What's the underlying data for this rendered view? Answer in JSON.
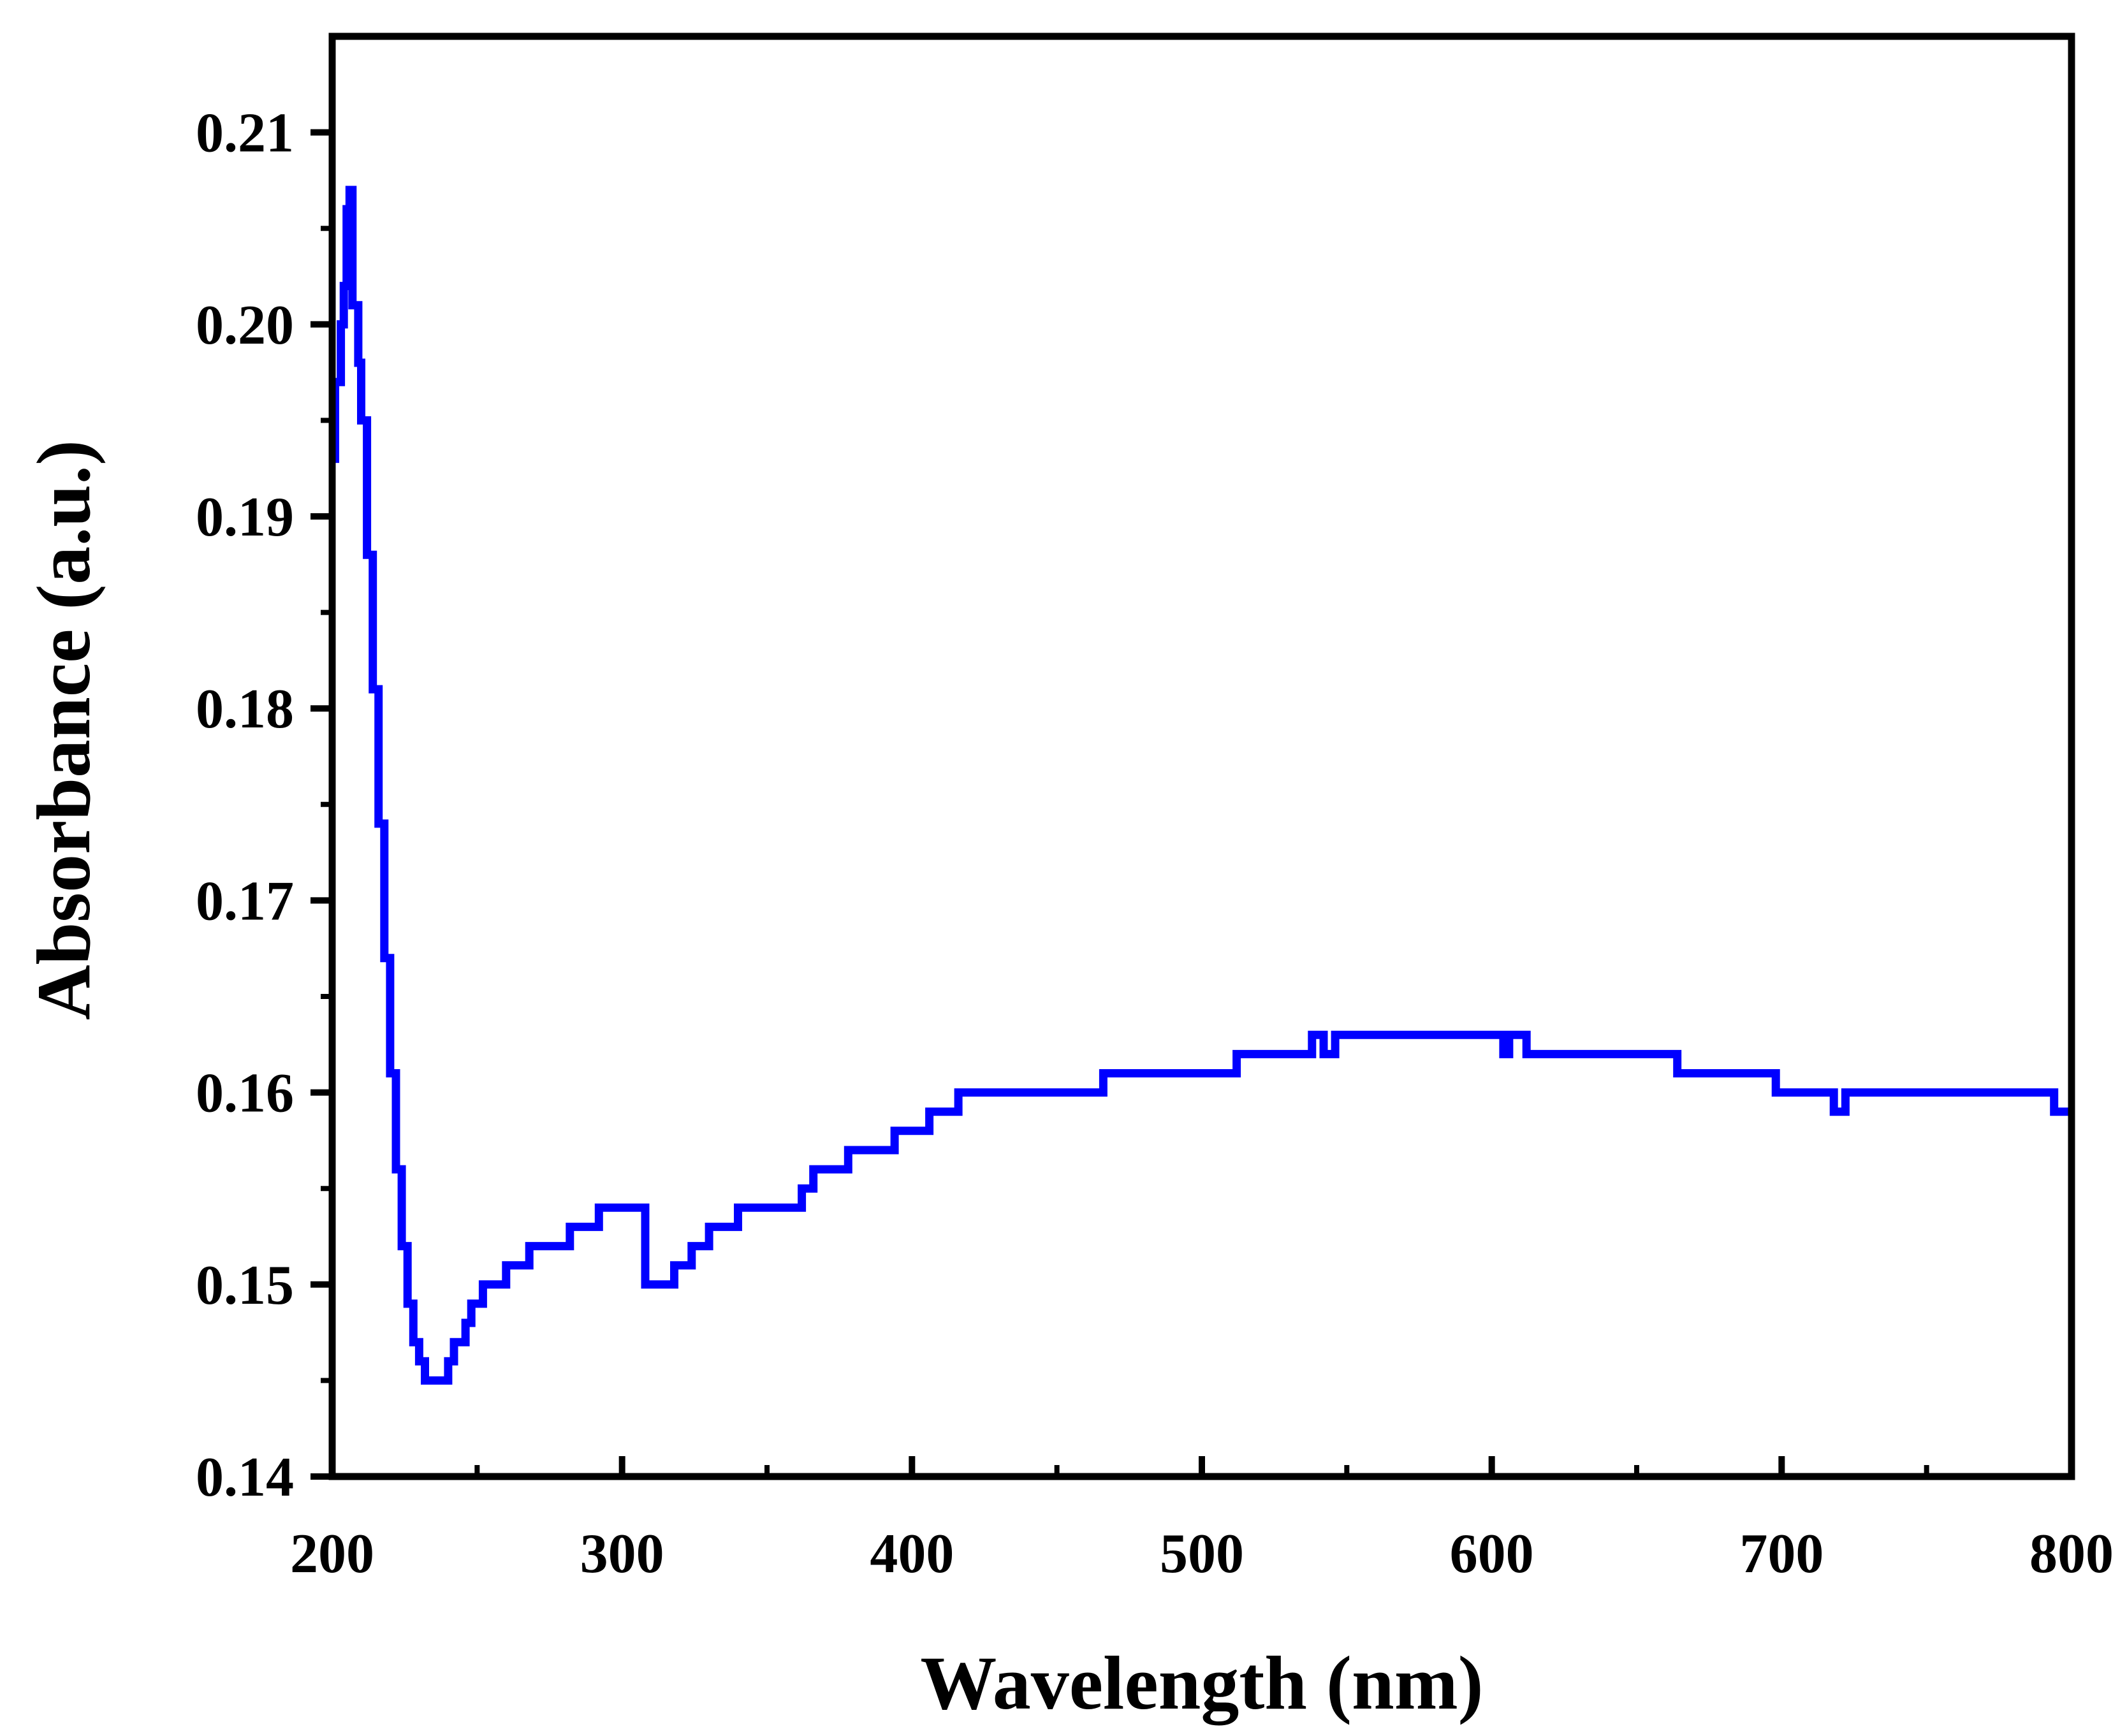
{
  "chart_data": {
    "type": "line",
    "title": "",
    "xlabel": "Wavelength (nm)",
    "ylabel": "Absorbance (a.u.)",
    "xlim": [
      200,
      800
    ],
    "ylim": [
      0.14,
      0.215
    ],
    "xticks": [
      200,
      300,
      400,
      500,
      600,
      700,
      800
    ],
    "xtick_labels": [
      "200",
      "300",
      "400",
      "500",
      "600",
      "700",
      "800"
    ],
    "yticks": [
      0.14,
      0.15,
      0.16,
      0.17,
      0.18,
      0.19,
      0.2,
      0.21
    ],
    "ytick_labels": [
      "0.14",
      "0.15",
      "0.16",
      "0.17",
      "0.18",
      "0.19",
      "0.20",
      "0.21"
    ],
    "grid": false,
    "series": [
      {
        "name": "Absorbance",
        "color": "#0000ff",
        "x": [
          200,
          201,
          203,
          204,
          205,
          206,
          207,
          208,
          209,
          210,
          212,
          214,
          216,
          218,
          220,
          222,
          224,
          226,
          228,
          230,
          232,
          234,
          238,
          240,
          242,
          246,
          248,
          252,
          255,
          260,
          268,
          278,
          282,
          292,
          306,
          308,
          314,
          318,
          324,
          330,
          340,
          348,
          362,
          366,
          378,
          394,
          406,
          410,
          416,
          454,
          456,
          462,
          466,
          470,
          508,
          512,
          536,
          538,
          542,
          546,
          550,
          600,
          604,
          606,
          612,
          660,
          664,
          668,
          694,
          698,
          714,
          718,
          722,
          790,
          794,
          800
        ],
        "y": [
          0.193,
          0.197,
          0.2,
          0.202,
          0.206,
          0.207,
          0.201,
          0.201,
          0.198,
          0.195,
          0.188,
          0.181,
          0.174,
          0.167,
          0.161,
          0.156,
          0.152,
          0.149,
          0.147,
          0.146,
          0.145,
          0.145,
          0.145,
          0.146,
          0.147,
          0.148,
          0.149,
          0.15,
          0.15,
          0.151,
          0.152,
          0.152,
          0.153,
          0.154,
          0.154,
          0.15,
          0.15,
          0.151,
          0.152,
          0.153,
          0.154,
          0.154,
          0.155,
          0.156,
          0.157,
          0.158,
          0.159,
          0.159,
          0.16,
          0.16,
          0.16,
          0.16,
          0.161,
          0.161,
          0.161,
          0.162,
          0.162,
          0.163,
          0.162,
          0.163,
          0.163,
          0.163,
          0.162,
          0.163,
          0.162,
          0.162,
          0.161,
          0.161,
          0.161,
          0.16,
          0.16,
          0.159,
          0.16,
          0.16,
          0.159,
          0.159
        ]
      }
    ]
  }
}
